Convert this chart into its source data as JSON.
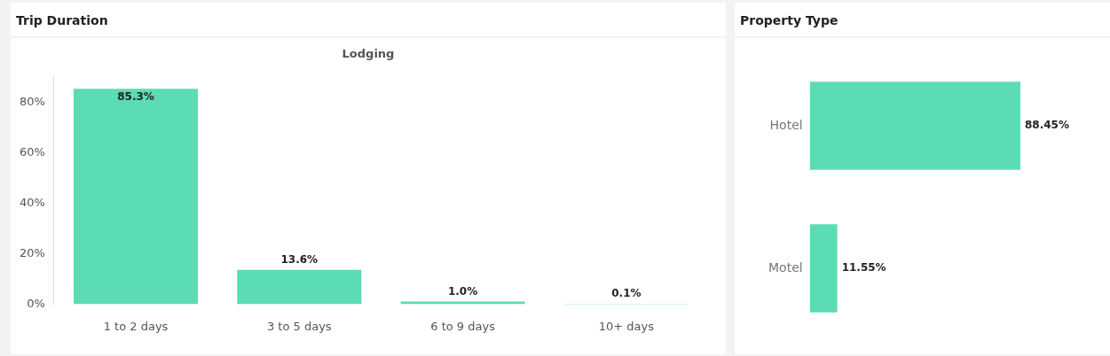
{
  "chart_data": [
    {
      "type": "bar",
      "title": "Trip Duration",
      "subtitle": "Lodging",
      "categories": [
        "1 to 2 days",
        "3 to 5 days",
        "6 to 9 days",
        "10+ days"
      ],
      "values": [
        85.3,
        13.6,
        1.0,
        0.1
      ],
      "value_labels": [
        "85.3%",
        "13.6%",
        "1.0%",
        "0.1%"
      ],
      "color": "#5cdcb4",
      "ylim": [
        0,
        90
      ],
      "yticks": [
        {
          "value": 0,
          "label": "0%"
        },
        {
          "value": 20,
          "label": "20%"
        },
        {
          "value": 40,
          "label": "40%"
        },
        {
          "value": 60,
          "label": "60%"
        },
        {
          "value": 80,
          "label": "80%"
        }
      ],
      "grid": false
    },
    {
      "type": "bar",
      "orientation": "horizontal",
      "title": "Property Type",
      "categories": [
        "Hotel",
        "Motel"
      ],
      "values": [
        88.45,
        11.55
      ],
      "value_labels": [
        "88.45%",
        "11.55%"
      ],
      "color": "#5cdcb4",
      "tick_labels": "y",
      "grid": false
    }
  ]
}
